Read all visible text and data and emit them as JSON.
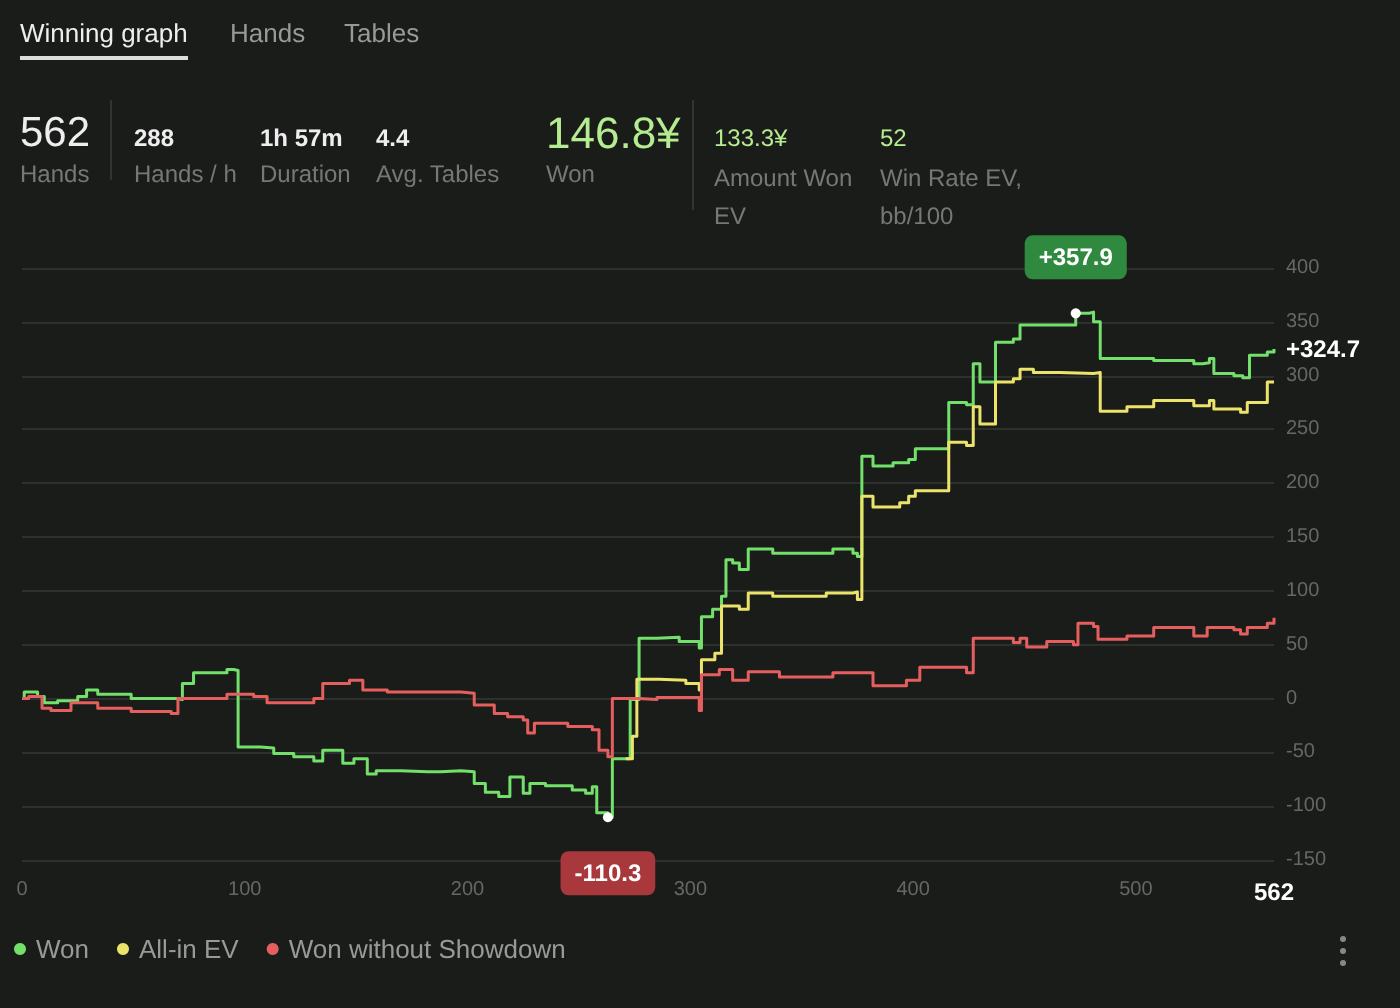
{
  "chart_data": {
    "type": "step",
    "annotations": [
      "Winning graph",
      "Hands",
      "Tables",
      "562",
      "Hands",
      "288",
      "Hands / h",
      "1h 57m",
      "Duration",
      "4.4",
      "Avg. Tables",
      "146.8¥",
      "Won",
      "133.3¥",
      "Amount Won EV",
      "52",
      "Win Rate EV, bb/100",
      {
        "text": "+357.9",
        "x": 473,
        "y": 357.9
      },
      {
        "text": "-110.3",
        "x": 263,
        "y": -110.3
      },
      {
        "text": "+324.7",
        "x": 562,
        "y": 324.7
      }
    ],
    "xlim": [
      0,
      562
    ],
    "xticks": [
      0,
      100,
      200,
      300,
      400,
      500,
      562
    ],
    "ylim": [
      -150,
      400
    ],
    "yticks": [
      -150,
      -100,
      -50,
      0,
      50,
      100,
      150,
      200,
      250,
      300,
      350,
      400
    ],
    "grid": "y",
    "legend": "bottom left",
    "marker": "none",
    "line_style": "solid",
    "series": [
      {
        "name": "Won",
        "color": "#72e06a",
        "x": [
          0,
          1,
          7,
          10,
          16,
          25,
          29,
          34,
          49,
          69,
          72,
          77,
          92,
          95,
          97,
          107,
          113,
          122,
          131,
          135,
          141,
          144,
          149,
          155,
          159,
          170,
          182,
          188,
          197,
          203,
          208,
          214,
          219,
          223,
          225,
          228,
          235,
          247,
          253,
          256,
          258,
          263,
          265,
          271,
          273,
          277,
          285,
          295,
          304,
          305,
          310,
          314,
          316,
          319,
          322,
          325,
          326,
          337,
          349,
          361,
          364,
          373,
          375,
          377,
          382,
          391,
          398,
          401,
          415,
          416,
          424,
          427,
          430,
          436,
          437,
          445,
          448,
          454,
          466,
          473,
          479,
          481,
          484,
          496,
          508,
          526,
          530,
          533,
          535,
          544,
          548,
          551,
          559,
          562
        ],
        "values": [
          0,
          6,
          2,
          -4,
          -2,
          2,
          8,
          4,
          0,
          -1,
          14,
          24,
          27,
          26,
          -45,
          -46,
          -51,
          -54,
          -58,
          -48,
          -48,
          -60,
          -56,
          -70,
          -67,
          -68,
          -68,
          -67,
          -68,
          -79,
          -87,
          -91,
          -73,
          -73,
          -88,
          -79,
          -81,
          -85,
          -88,
          -82,
          -106,
          -110.3,
          -56,
          -56,
          -1,
          56,
          57,
          53,
          47,
          76,
          83,
          95,
          129,
          126,
          120,
          120,
          139,
          135,
          135,
          135,
          139,
          135,
          132,
          225,
          216,
          219,
          222,
          232,
          232,
          275,
          273,
          311,
          294,
          294,
          331,
          334,
          347,
          347,
          347,
          357.9,
          359,
          350,
          316,
          316,
          314,
          311,
          312,
          316,
          302,
          300,
          298,
          319,
          322,
          324.7
        ]
      },
      {
        "name": "All-in EV",
        "color": "#ece36a",
        "x": [
          271,
          274,
          276,
          286,
          298,
          304,
          305,
          311,
          314,
          322,
          326,
          337,
          361,
          373,
          375,
          377,
          382,
          394,
          398,
          401,
          415,
          416,
          424,
          427,
          430,
          436,
          437,
          445,
          448,
          454,
          466,
          481,
          484,
          496,
          508,
          526,
          533,
          535,
          547,
          550,
          559,
          562
        ],
        "values": [
          -56,
          -35,
          18,
          17,
          14,
          8,
          36,
          42,
          86,
          83,
          98,
          95,
          98,
          99,
          92,
          188,
          178,
          182,
          188,
          193,
          193,
          238,
          235,
          271,
          255,
          255,
          294,
          297,
          306,
          303,
          302,
          303,
          267,
          271,
          277,
          272,
          277,
          269,
          266,
          275,
          294,
          294
        ]
      },
      {
        "name": "Won without Showdown",
        "color": "#e55f5f",
        "x": [
          0,
          3,
          9,
          13,
          22,
          34,
          49,
          67,
          70,
          92,
          104,
          110,
          122,
          131,
          135,
          147,
          153,
          164,
          182,
          197,
          203,
          212,
          218,
          225,
          227,
          230,
          245,
          256,
          259,
          263,
          265,
          277,
          285,
          304,
          305,
          313,
          319,
          326,
          340,
          364,
          382,
          397,
          403,
          424,
          427,
          445,
          448,
          451,
          460,
          472,
          474,
          481,
          483,
          496,
          508,
          526,
          532,
          544,
          547,
          550,
          559,
          562
        ],
        "values": [
          0,
          2,
          -9,
          -11,
          -4,
          -9,
          -12,
          -14,
          0,
          4,
          2,
          -4,
          -4,
          0,
          14,
          17,
          8,
          6,
          6,
          5,
          -6,
          -14,
          -17,
          -20,
          -32,
          -23,
          -26,
          -29,
          -48,
          -54,
          0,
          -1,
          1,
          -11,
          22,
          27,
          17,
          25,
          20,
          24,
          12,
          17,
          29,
          24,
          56,
          52,
          56,
          48,
          53,
          50,
          70,
          67,
          55,
          58,
          66,
          58,
          66,
          64,
          60,
          66,
          70,
          75
        ]
      }
    ]
  }
}
